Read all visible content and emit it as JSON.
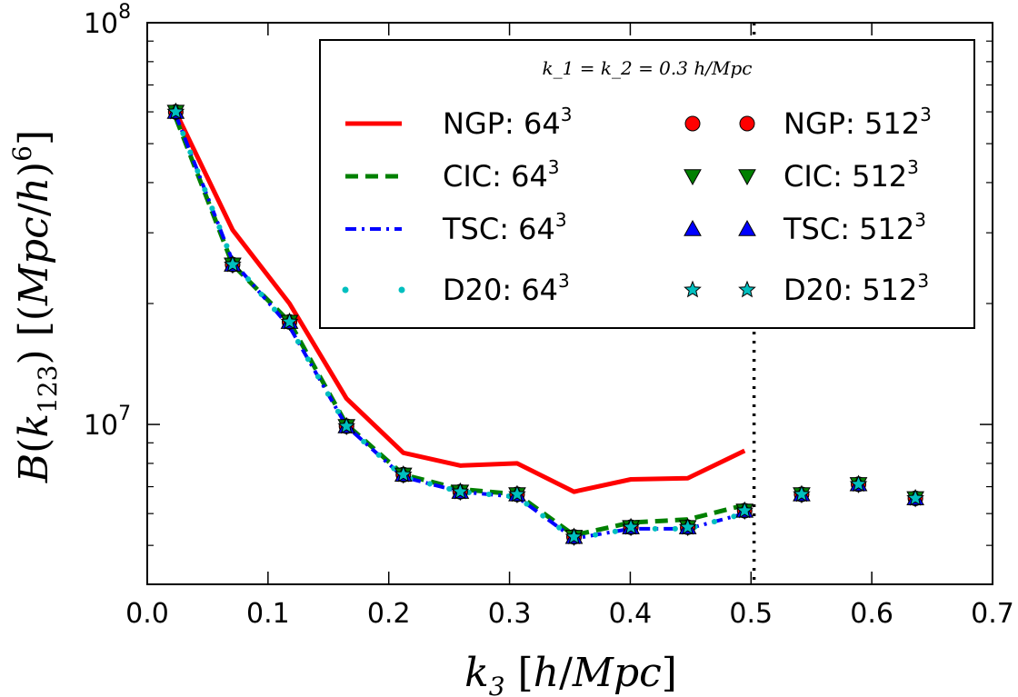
{
  "chart_data": {
    "type": "line",
    "title": "",
    "xlabel": "k_3 [h/Mpc]",
    "ylabel": "B(k_123) [(Mpc/h)^6]",
    "xlim": [
      0.0,
      0.7
    ],
    "ylim": [
      4000000,
      100000000
    ],
    "yscale": "log",
    "x_ticks": [
      "0.0",
      "0.1",
      "0.2",
      "0.3",
      "0.4",
      "0.5",
      "0.6",
      "0.7"
    ],
    "y_ticks": [
      {
        "mantissa": "10",
        "exponent": "7",
        "value": 10000000
      },
      {
        "mantissa": "10",
        "exponent": "8",
        "value": 100000000
      }
    ],
    "vline": {
      "x": 0.5025,
      "style": "dotted",
      "color": "#000000"
    },
    "legend": {
      "title": "k_1 = k_2 = 0.3 h/Mpc",
      "placement": "upper right",
      "ncol": 2
    },
    "series": [
      {
        "name": "NGP: 64",
        "name_sup": "3",
        "style": "line-solid",
        "color": "#ff0000",
        "x": [
          0.0236,
          0.0707,
          0.1178,
          0.165,
          0.2121,
          0.2592,
          0.3063,
          0.3534,
          0.4005,
          0.4476,
          0.4947
        ],
        "y": [
          60000000,
          30500000,
          20000000,
          11600000,
          8500000,
          7900000,
          8000000,
          6800000,
          7300000,
          7350000,
          8600000
        ]
      },
      {
        "name": "CIC: 64",
        "name_sup": "3",
        "style": "line-dashed",
        "color": "#008000",
        "x": [
          0.0236,
          0.0707,
          0.1178,
          0.165,
          0.2121,
          0.2592,
          0.3063,
          0.3534,
          0.4005,
          0.4476,
          0.4947
        ],
        "y": [
          58000000,
          25000000,
          18000000,
          10000000,
          7500000,
          6900000,
          6700000,
          5300000,
          5700000,
          5800000,
          6300000
        ]
      },
      {
        "name": "TSC: 64",
        "name_sup": "3",
        "style": "line-dashdot",
        "color": "#0000ff",
        "x": [
          0.0236,
          0.0707,
          0.1178,
          0.165,
          0.2121,
          0.2592,
          0.3063,
          0.3534,
          0.4005,
          0.4476,
          0.4947
        ],
        "y": [
          59000000,
          25500000,
          17500000,
          9900000,
          7400000,
          6800000,
          6600000,
          5200000,
          5500000,
          5500000,
          6000000
        ]
      },
      {
        "name": "D20: 64",
        "name_sup": "3",
        "style": "line-dotted",
        "color": "#00bfbf",
        "x": [
          0.0236,
          0.0707,
          0.1178,
          0.165,
          0.2121,
          0.2592,
          0.3063,
          0.3534,
          0.4005,
          0.4476,
          0.4947
        ],
        "y": [
          59000000,
          25500000,
          17500000,
          9900000,
          7400000,
          6800000,
          6600000,
          5200000,
          5500000,
          5500000,
          6000000
        ]
      },
      {
        "name": "NGP: 512",
        "name_sup": "3",
        "style": "marker-circle",
        "color": "#ff0000",
        "x": [
          0.0236,
          0.0707,
          0.1178,
          0.165,
          0.2121,
          0.2592,
          0.3063,
          0.3534,
          0.4005,
          0.4476,
          0.4947,
          0.5419,
          0.589,
          0.6361
        ],
        "y": [
          60000000,
          25000000,
          18000000,
          9900000,
          7500000,
          6800000,
          6700000,
          5250000,
          5550000,
          5550000,
          6100000,
          6700000,
          7100000,
          6550000
        ]
      },
      {
        "name": "CIC: 512",
        "name_sup": "3",
        "style": "marker-tri-down",
        "color": "#008000",
        "x": [
          0.0236,
          0.0707,
          0.1178,
          0.165,
          0.2121,
          0.2592,
          0.3063,
          0.3534,
          0.4005,
          0.4476,
          0.4947,
          0.5419,
          0.589,
          0.6361
        ],
        "y": [
          60000000,
          25000000,
          18000000,
          9900000,
          7500000,
          6800000,
          6700000,
          5250000,
          5550000,
          5550000,
          6100000,
          6700000,
          7100000,
          6550000
        ]
      },
      {
        "name": "TSC: 512",
        "name_sup": "3",
        "style": "marker-tri-up",
        "color": "#0000ff",
        "x": [
          0.0236,
          0.0707,
          0.1178,
          0.165,
          0.2121,
          0.2592,
          0.3063,
          0.3534,
          0.4005,
          0.4476,
          0.4947,
          0.5419,
          0.589,
          0.6361
        ],
        "y": [
          60000000,
          25000000,
          18000000,
          9900000,
          7500000,
          6800000,
          6700000,
          5250000,
          5550000,
          5550000,
          6100000,
          6700000,
          7100000,
          6550000
        ]
      },
      {
        "name": "D20: 512",
        "name_sup": "3",
        "style": "marker-star",
        "color": "#00bfbf",
        "x": [
          0.0236,
          0.0707,
          0.1178,
          0.165,
          0.2121,
          0.2592,
          0.3063,
          0.3534,
          0.4005,
          0.4476,
          0.4947,
          0.5419,
          0.589,
          0.6361
        ],
        "y": [
          60000000,
          25000000,
          18000000,
          9900000,
          7500000,
          6800000,
          6700000,
          5250000,
          5550000,
          5550000,
          6100000,
          6700000,
          7100000,
          6550000
        ]
      }
    ]
  }
}
